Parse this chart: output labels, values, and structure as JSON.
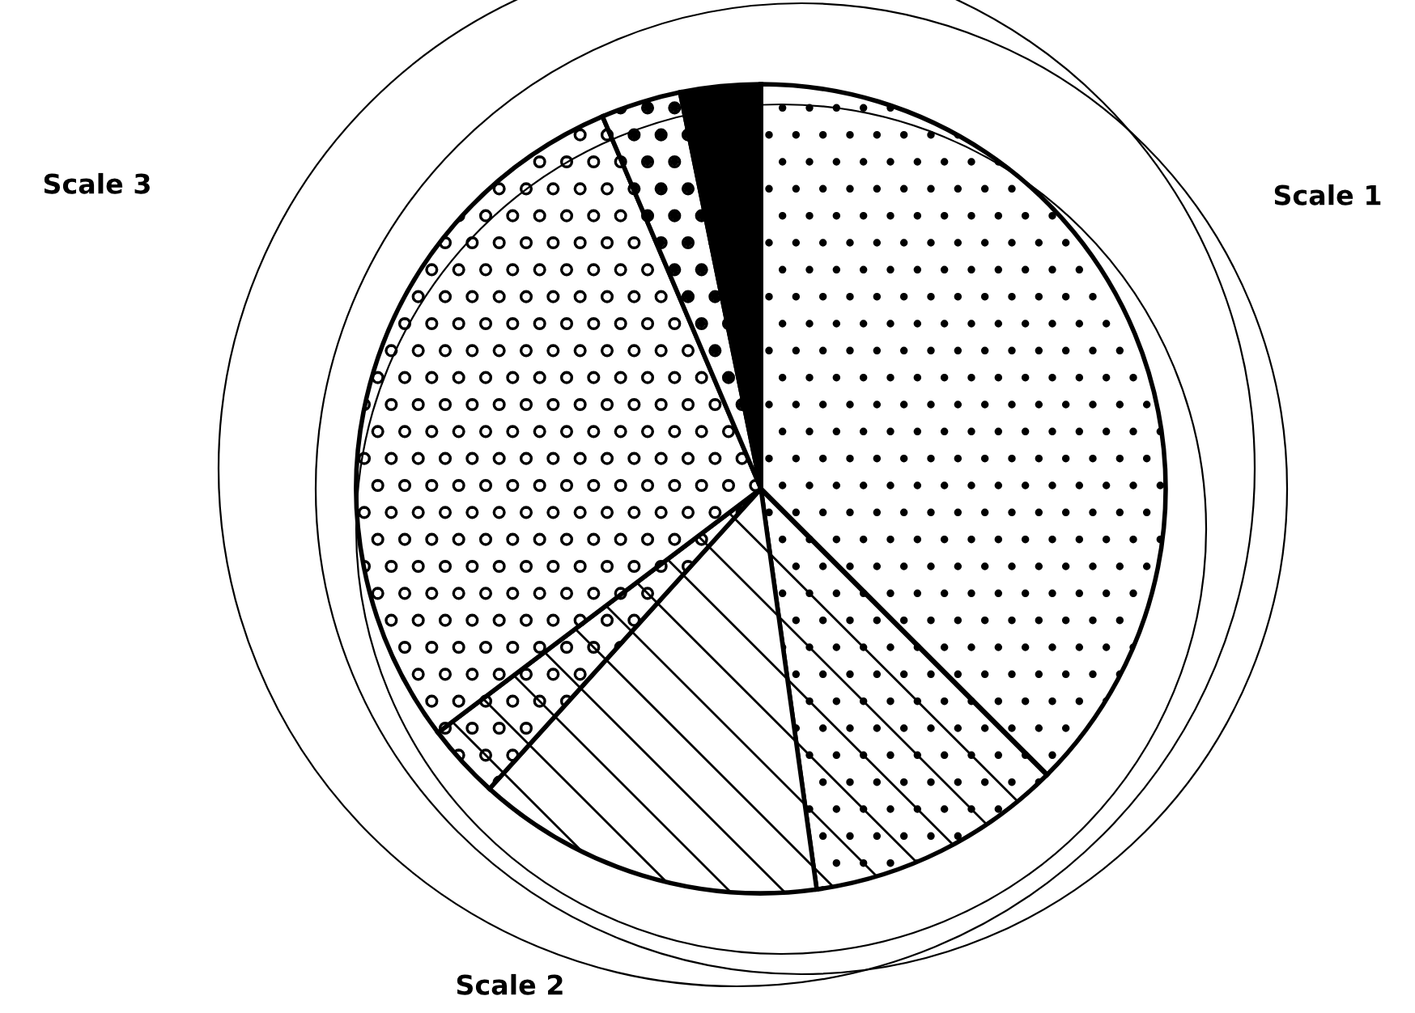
{
  "chart_data": {
    "type": "pie",
    "categories": [
      null,
      null,
      null,
      null,
      null,
      null,
      null
    ],
    "values": [
      37.5,
      10.3,
      13.9,
      3.0,
      28.9,
      3.2,
      3.2
    ],
    "colors": [
      "#ffffff",
      "#ffffff",
      "#ffffff",
      "#ffffff",
      "#ffffff",
      "#ffffff",
      "#000000"
    ],
    "annotations": [
      "Scale 1",
      "Scale 2",
      "Scale 3"
    ],
    "legend": false
  }
}
